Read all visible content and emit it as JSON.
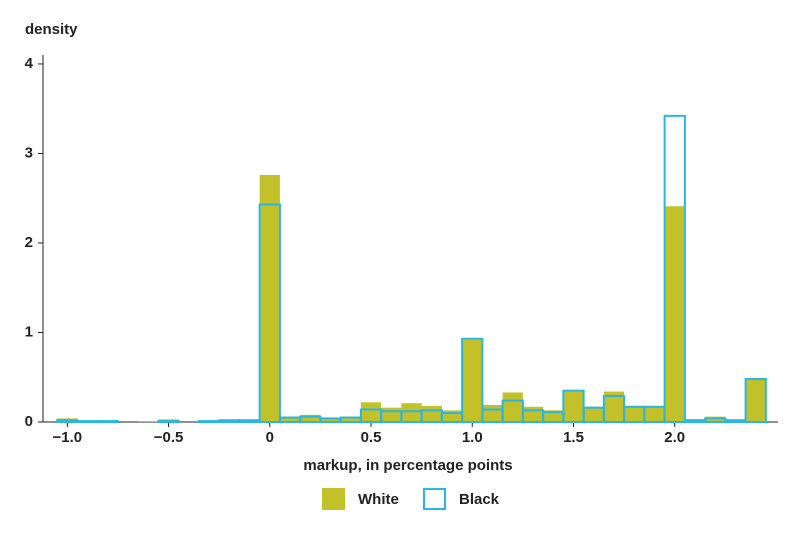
{
  "chart_data": {
    "type": "histogram",
    "y_label": "density",
    "x_label": "markup, in percentage points",
    "bins": [
      -1.05,
      -0.95,
      -0.85,
      -0.75,
      -0.65,
      -0.55,
      -0.45,
      -0.35,
      -0.25,
      -0.15,
      -0.05,
      0.05,
      0.15,
      0.25,
      0.35,
      0.45,
      0.55,
      0.65,
      0.75,
      0.85,
      0.95,
      1.05,
      1.15,
      1.25,
      1.35,
      1.45,
      1.55,
      1.65,
      1.75,
      1.85,
      1.95,
      2.05,
      2.15,
      2.25,
      2.35,
      2.45
    ],
    "series": [
      {
        "name": "White",
        "color": "#c2c12a",
        "style": "filled",
        "values": [
          0.04,
          0.01,
          0.01,
          0.0,
          0.01,
          0.03,
          0.0,
          0.01,
          0.01,
          0.01,
          2.76,
          0.06,
          0.08,
          0.05,
          0.06,
          0.22,
          0.16,
          0.21,
          0.18,
          0.13,
          0.92,
          0.19,
          0.33,
          0.17,
          0.13,
          0.34,
          0.17,
          0.34,
          0.18,
          0.17,
          2.41,
          0.03,
          0.06,
          0.01,
          0.47
        ]
      },
      {
        "name": "Black",
        "color": "#29b6e0",
        "style": "outline",
        "values": [
          0.02,
          0.01,
          0.01,
          0.0,
          0.0,
          0.01,
          0.0,
          0.01,
          0.02,
          0.02,
          2.43,
          0.05,
          0.06,
          0.04,
          0.05,
          0.14,
          0.12,
          0.12,
          0.13,
          0.1,
          0.93,
          0.14,
          0.24,
          0.13,
          0.11,
          0.35,
          0.16,
          0.29,
          0.17,
          0.17,
          3.42,
          0.02,
          0.04,
          0.02,
          0.48
        ]
      }
    ],
    "xlim": [
      -1.12,
      2.51
    ],
    "ylim": [
      0,
      4.1
    ],
    "xticks": [
      {
        "value": -1.0,
        "label": "−1.0"
      },
      {
        "value": -0.5,
        "label": "−0.5"
      },
      0,
      0.5,
      {
        "value": 1.0,
        "label": "1.0"
      },
      1.5,
      {
        "value": 2.0,
        "label": "2.0"
      }
    ],
    "yticks": [
      0,
      1,
      2,
      3,
      4
    ]
  }
}
